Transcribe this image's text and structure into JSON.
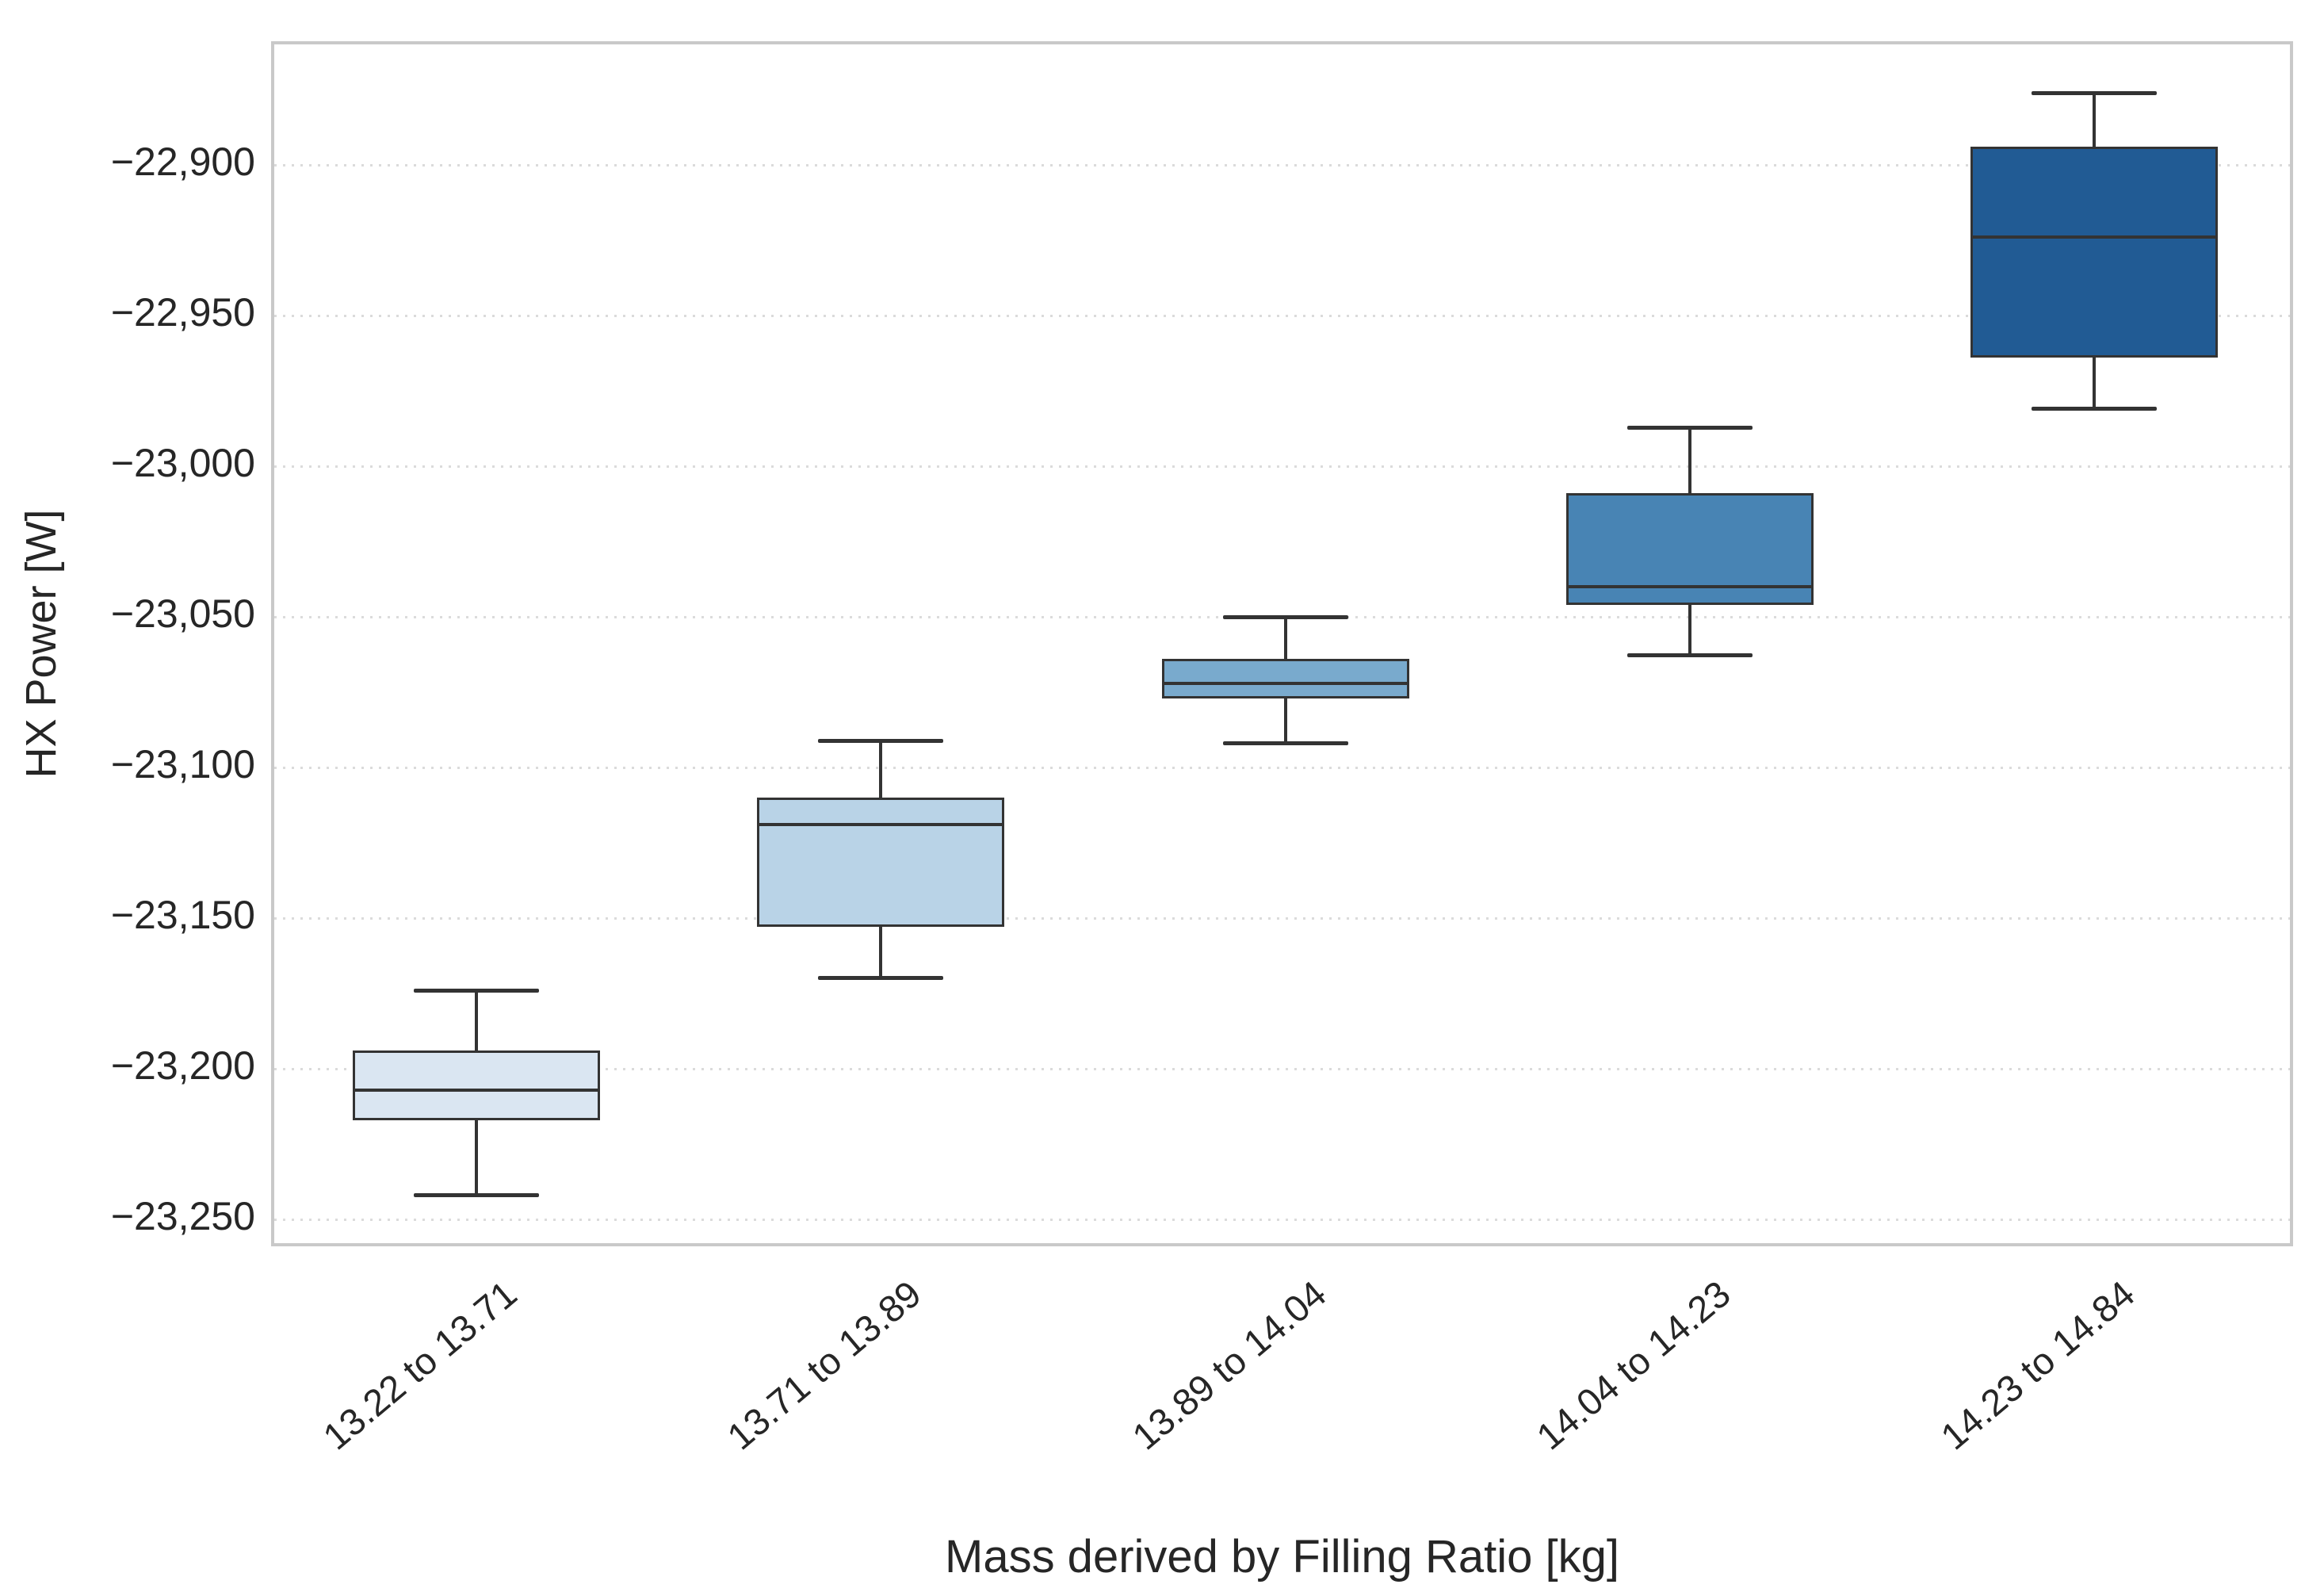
{
  "chart_data": {
    "type": "box",
    "title": "",
    "xlabel": "Mass derived by Filling Ratio [kg]",
    "ylabel": "HX Power [W]",
    "categories": [
      "13.22 to 13.71",
      "13.71 to 13.89",
      "13.89 to 14.04",
      "14.04 to 14.23",
      "14.23 to 14.84"
    ],
    "series": [
      {
        "category": "13.22 to 13.71",
        "whisker_low": -23242,
        "q1": -23217,
        "median": -23207,
        "q3": -23194,
        "whisker_high": -23174,
        "fill_color": "#dae6f2"
      },
      {
        "category": "13.71 to 13.89",
        "whisker_low": -23170,
        "q1": -23153,
        "median": -23119,
        "q3": -23110,
        "whisker_high": -23091,
        "fill_color": "#b9d3e7"
      },
      {
        "category": "13.89 to 14.04",
        "whisker_low": -23092,
        "q1": -23077,
        "median": -23072,
        "q3": -23064,
        "whisker_high": -23050,
        "fill_color": "#79aacd"
      },
      {
        "category": "14.04 to 14.23",
        "whisker_low": -23063,
        "q1": -23046,
        "median": -23040,
        "q3": -23009,
        "whisker_high": -22987,
        "fill_color": "#4884b4"
      },
      {
        "category": "14.23 to 14.84",
        "whisker_low": -22981,
        "q1": -22964,
        "median": -22924,
        "q3": -22894,
        "whisker_high": -22876,
        "fill_color": "#215b94"
      }
    ],
    "ylim": [
      -23260,
      -22860
    ],
    "yticks": [
      {
        "value": -22900,
        "label": "−22,900"
      },
      {
        "value": -22950,
        "label": "−22,950"
      },
      {
        "value": -23000,
        "label": "−23,000"
      },
      {
        "value": -23050,
        "label": "−23,050"
      },
      {
        "value": -23100,
        "label": "−23,100"
      },
      {
        "value": -23150,
        "label": "−23,150"
      },
      {
        "value": -23200,
        "label": "−23,200"
      },
      {
        "value": -23250,
        "label": "−23,250"
      }
    ],
    "x_tick_rotation_deg": -40,
    "grid": "horizontal-dotted",
    "legend": "none",
    "colors": {
      "box_edge": "#333333",
      "median": "#333333",
      "whisker": "#333333",
      "gridline": "#dbdbdb",
      "spine": "#c9c9c9",
      "text": "#262626",
      "background": "#ffffff"
    }
  }
}
